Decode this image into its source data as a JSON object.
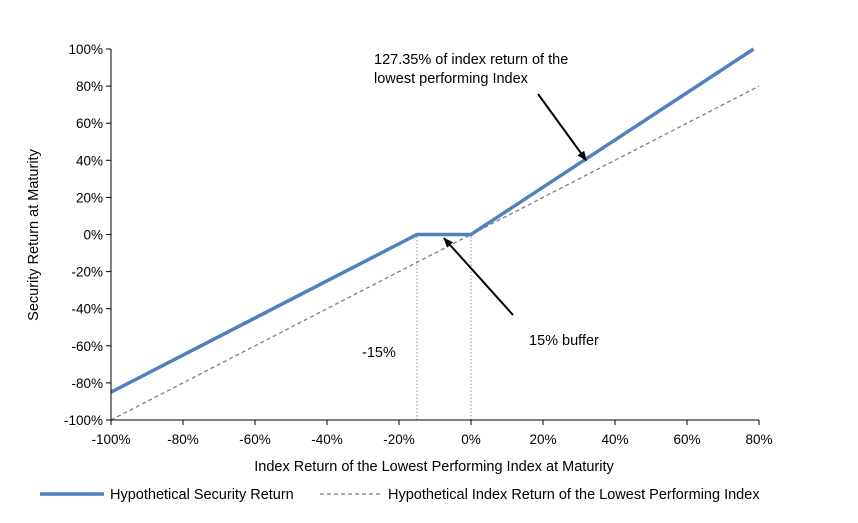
{
  "chart_data": {
    "type": "line",
    "title": "",
    "xlabel": "Index Return of the Lowest Performing Index at Maturity",
    "ylabel": "Security Return at Maturity",
    "xlim": [
      -100,
      80
    ],
    "ylim": [
      -100,
      100
    ],
    "x_ticks": [
      "-100%",
      "-80%",
      "-60%",
      "-40%",
      "-20%",
      "0%",
      "20%",
      "40%",
      "60%",
      "80%"
    ],
    "y_ticks": [
      "100%",
      "80%",
      "60%",
      "40%",
      "20%",
      "0%",
      "-20%",
      "-40%",
      "-60%",
      "-80%",
      "-100%"
    ],
    "grid": false,
    "legend_position": "bottom",
    "series": [
      {
        "name": "Hypothetical Security Return",
        "color": "#4f81bd",
        "style": "solid",
        "points": [
          [
            -100,
            -85
          ],
          [
            -15,
            0
          ],
          [
            0,
            0
          ],
          [
            78.5,
            100
          ]
        ]
      },
      {
        "name": "Hypothetical Index Return of the Lowest Performing Index",
        "color": "#7f7f7f",
        "style": "dashed",
        "points": [
          [
            -100,
            -100
          ],
          [
            80,
            80
          ]
        ]
      }
    ],
    "reference_lines": [
      {
        "x": -15,
        "from_y": -100,
        "to_y": 0
      },
      {
        "x": 0,
        "from_y": -100,
        "to_y": 0
      }
    ],
    "annotations": [
      {
        "id": "participation",
        "lines": [
          "127.35% of index return of the",
          "lowest performing Index"
        ],
        "arrow_to": [
          32,
          40
        ]
      },
      {
        "id": "buffer",
        "lines": [
          "15% buffer"
        ],
        "arrow_to": [
          -7.5,
          -2
        ]
      },
      {
        "id": "minus15",
        "lines": [
          "-15%"
        ]
      }
    ]
  }
}
